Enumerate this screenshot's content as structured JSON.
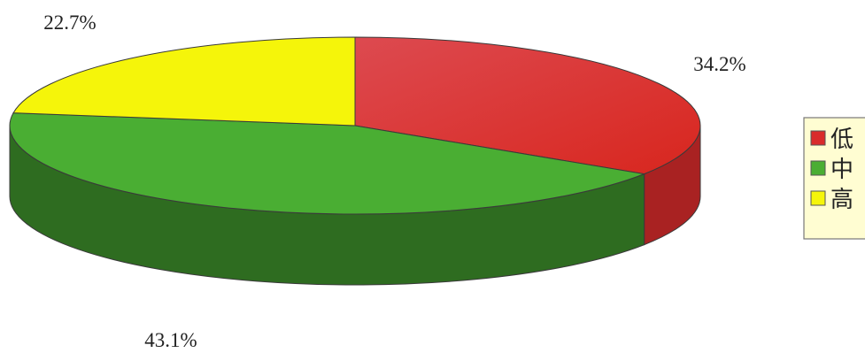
{
  "chart_data": {
    "type": "pie",
    "title": "",
    "slices": [
      {
        "label": "低",
        "value": 34.2,
        "display": "34.2%",
        "color": "#d92b2b"
      },
      {
        "label": "中",
        "value": 43.1,
        "display": "43.1%",
        "color": "#4aae33"
      },
      {
        "label": "高",
        "value": 22.7,
        "display": "22.7%",
        "color": "#f5f50a"
      }
    ],
    "legend_position": "right",
    "style": "3d"
  }
}
